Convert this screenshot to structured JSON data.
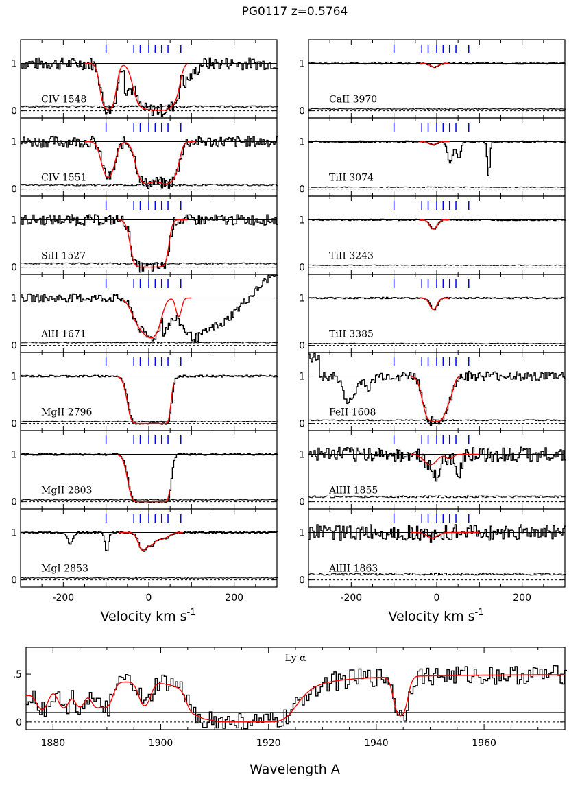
{
  "figure": {
    "title": "PG0117    z=0.5764",
    "velocity_xlabel": "Velocity  km  s",
    "velocity_xlabel_sup": "-1",
    "wavelength_xlabel": "Wavelength  A"
  },
  "chart_data": {
    "type": "line",
    "velocity_axis": {
      "range": [
        -300,
        300
      ],
      "ticks": [
        -200,
        0,
        200
      ],
      "tick_labels": [
        "-200",
        "0",
        "200"
      ]
    },
    "flux_ticks": {
      "values": [
        0,
        1
      ],
      "labels": [
        "0",
        "1"
      ],
      "range": [
        -0.15,
        1.5
      ]
    },
    "component_velocities_kms": [
      -100,
      -35,
      -20,
      0,
      15,
      30,
      45,
      75
    ],
    "left_panels": [
      {
        "label": "CIV 1548",
        "kind": "civ1548"
      },
      {
        "label": "CIV 1551",
        "kind": "civ1551"
      },
      {
        "label": "SiII 1527",
        "kind": "siii"
      },
      {
        "label": "AlII 1671",
        "kind": "alii"
      },
      {
        "label": "MgII 2796",
        "kind": "mgii"
      },
      {
        "label": "MgII 2803",
        "kind": "mgii2803"
      },
      {
        "label": "MgI 2853",
        "kind": "mgi"
      }
    ],
    "right_panels": [
      {
        "label": "CaII 3970",
        "kind": "weak"
      },
      {
        "label": "TiII 3074",
        "kind": "tiii3074"
      },
      {
        "label": "TiII 3243",
        "kind": "tiii3243"
      },
      {
        "label": "TiII 3385",
        "kind": "tiii3385"
      },
      {
        "label": "FeII 1608",
        "kind": "feii"
      },
      {
        "label": "AlIII 1855",
        "kind": "aliii1855"
      },
      {
        "label": "AlIII 1863",
        "kind": "aliii1863"
      }
    ],
    "lya": {
      "label": "Ly α",
      "x_range": [
        1875,
        1975
      ],
      "x_ticks": [
        1880,
        1900,
        1920,
        1940,
        1960
      ],
      "x_tick_labels": [
        "1880",
        "1900",
        "1920",
        "1940",
        "1960"
      ],
      "y_range": [
        -0.08,
        0.78
      ],
      "y_ticks": [
        0,
        0.5
      ],
      "y_tick_labels": [
        "0",
        ".5"
      ],
      "damped_absorption_center_A": 1916,
      "absorption_lines_A": [
        1878,
        1882,
        1885,
        1888,
        1890,
        1897,
        1906,
        1908,
        1944.5
      ],
      "continuum_level": 0.5
    }
  }
}
